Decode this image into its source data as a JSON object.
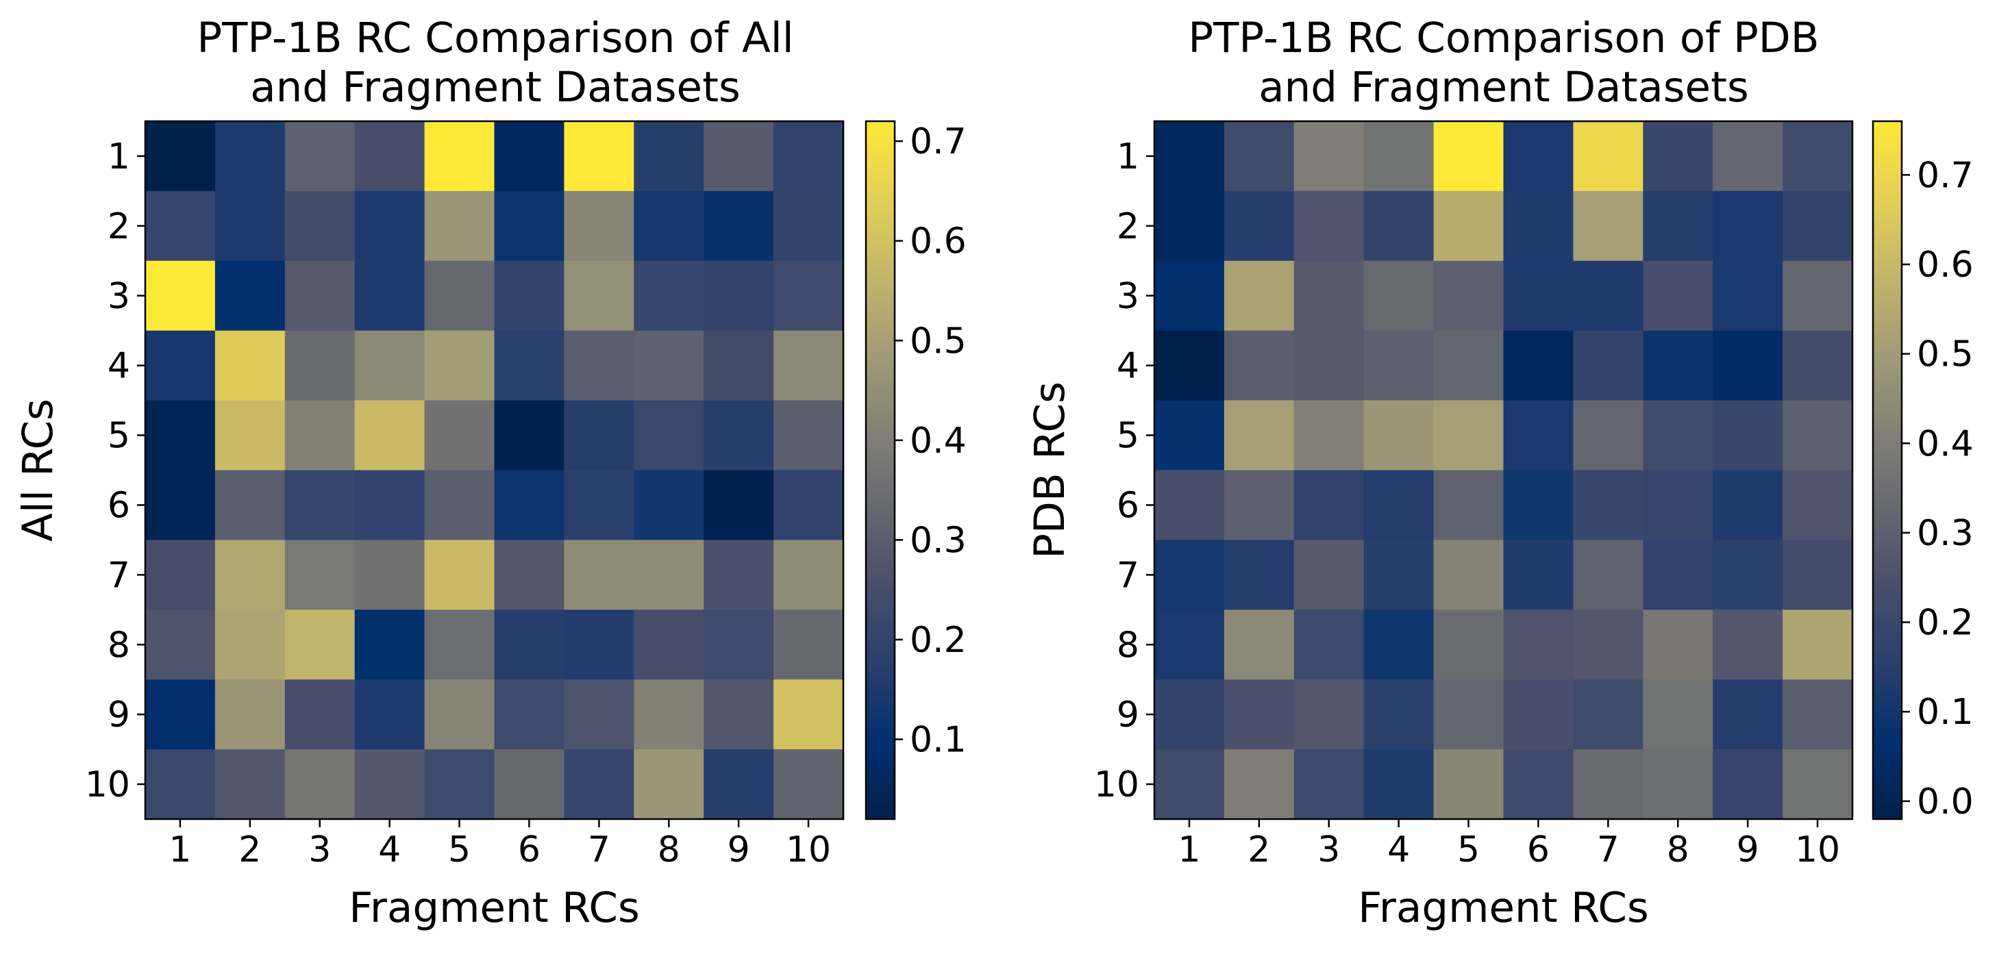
{
  "colormap": {
    "name": "cividis",
    "stops": [
      "#00204c",
      "#00306f",
      "#2a3f6d",
      "#484e6b",
      "#666870",
      "#838176",
      "#a29c76",
      "#c3b56a",
      "#e4cf56",
      "#fee838"
    ]
  },
  "chart_data": [
    {
      "type": "heatmap",
      "title_line1": "PTP-1B RC Comparison of All",
      "title_line2": "and Fragment Datasets",
      "xlabel": "Fragment RCs",
      "ylabel": "All RCs",
      "x_ticks": [
        "1",
        "2",
        "3",
        "4",
        "5",
        "6",
        "7",
        "8",
        "9",
        "10"
      ],
      "y_ticks": [
        "1",
        "2",
        "3",
        "4",
        "5",
        "6",
        "7",
        "8",
        "9",
        "10"
      ],
      "vmin": 0.02,
      "vmax": 0.72,
      "colorbar_ticks": [
        "0.1",
        "0.2",
        "0.3",
        "0.4",
        "0.5",
        "0.6",
        "0.7"
      ],
      "values": [
        [
          0.02,
          0.15,
          0.31,
          0.25,
          0.72,
          0.06,
          0.72,
          0.17,
          0.29,
          0.19
        ],
        [
          0.21,
          0.15,
          0.24,
          0.15,
          0.47,
          0.12,
          0.42,
          0.14,
          0.11,
          0.2
        ],
        [
          0.72,
          0.1,
          0.29,
          0.15,
          0.33,
          0.2,
          0.45,
          0.21,
          0.2,
          0.23
        ],
        [
          0.14,
          0.63,
          0.34,
          0.43,
          0.49,
          0.18,
          0.3,
          0.31,
          0.24,
          0.43
        ],
        [
          0.04,
          0.58,
          0.41,
          0.58,
          0.36,
          0.03,
          0.17,
          0.22,
          0.17,
          0.3
        ],
        [
          0.04,
          0.3,
          0.21,
          0.19,
          0.3,
          0.12,
          0.18,
          0.13,
          0.03,
          0.19
        ],
        [
          0.25,
          0.52,
          0.38,
          0.36,
          0.58,
          0.28,
          0.44,
          0.44,
          0.26,
          0.44
        ],
        [
          0.27,
          0.51,
          0.56,
          0.1,
          0.35,
          0.17,
          0.16,
          0.25,
          0.23,
          0.33
        ],
        [
          0.09,
          0.47,
          0.25,
          0.15,
          0.42,
          0.23,
          0.27,
          0.41,
          0.28,
          0.6
        ],
        [
          0.22,
          0.28,
          0.37,
          0.28,
          0.23,
          0.33,
          0.21,
          0.47,
          0.17,
          0.32
        ]
      ]
    },
    {
      "type": "heatmap",
      "title_line1": "PTP-1B RC Comparison of PDB",
      "title_line2": "and Fragment Datasets",
      "xlabel": "Fragment RCs",
      "ylabel": "PDB RCs",
      "x_ticks": [
        "1",
        "2",
        "3",
        "4",
        "5",
        "6",
        "7",
        "8",
        "9",
        "10"
      ],
      "y_ticks": [
        "1",
        "2",
        "3",
        "4",
        "5",
        "6",
        "7",
        "8",
        "9",
        "10"
      ],
      "vmin": -0.02,
      "vmax": 0.76,
      "colorbar_ticks": [
        "0.0",
        "0.1",
        "0.2",
        "0.3",
        "0.4",
        "0.5",
        "0.6",
        "0.7"
      ],
      "values": [
        [
          0.03,
          0.22,
          0.4,
          0.36,
          0.76,
          0.12,
          0.7,
          0.2,
          0.32,
          0.22
        ],
        [
          0.03,
          0.15,
          0.26,
          0.18,
          0.56,
          0.13,
          0.51,
          0.14,
          0.12,
          0.18
        ],
        [
          0.06,
          0.52,
          0.28,
          0.33,
          0.3,
          0.13,
          0.13,
          0.24,
          0.12,
          0.32
        ],
        [
          -0.02,
          0.29,
          0.28,
          0.3,
          0.32,
          0.02,
          0.18,
          0.09,
          0.04,
          0.23
        ],
        [
          0.08,
          0.51,
          0.41,
          0.48,
          0.51,
          0.12,
          0.32,
          0.22,
          0.2,
          0.3
        ],
        [
          0.24,
          0.3,
          0.17,
          0.14,
          0.31,
          0.1,
          0.2,
          0.19,
          0.13,
          0.26
        ],
        [
          0.11,
          0.14,
          0.28,
          0.15,
          0.42,
          0.13,
          0.31,
          0.17,
          0.16,
          0.23
        ],
        [
          0.12,
          0.44,
          0.21,
          0.1,
          0.34,
          0.26,
          0.27,
          0.38,
          0.27,
          0.53
        ],
        [
          0.18,
          0.25,
          0.27,
          0.16,
          0.32,
          0.24,
          0.22,
          0.36,
          0.14,
          0.29
        ],
        [
          0.22,
          0.4,
          0.21,
          0.13,
          0.43,
          0.21,
          0.33,
          0.35,
          0.19,
          0.36
        ]
      ]
    }
  ]
}
